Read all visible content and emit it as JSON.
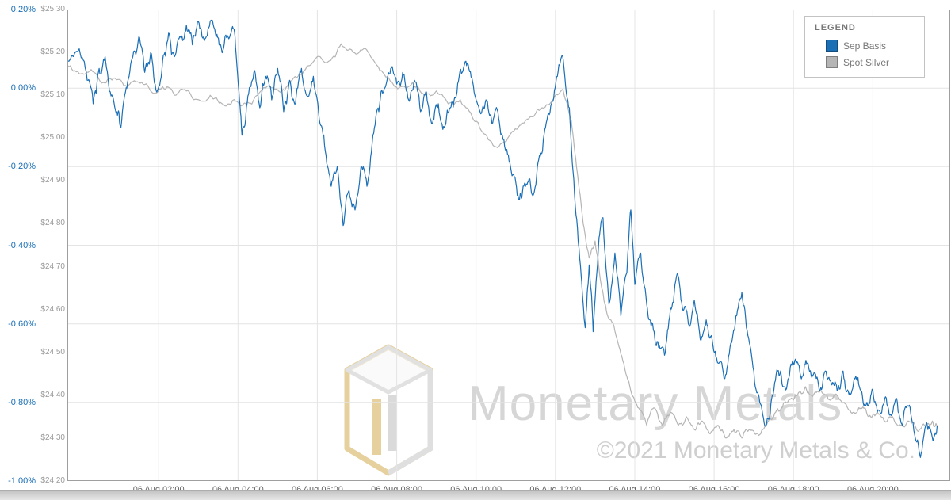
{
  "legend": {
    "title": "LEGEND"
  },
  "watermark": {
    "brand": "Monetary Metals",
    "copyright": "©2021 Monetary Metals & Co."
  },
  "chart_data": {
    "type": "line",
    "title": "",
    "grid": true,
    "legend_position": "top-right",
    "x_axis": {
      "range_hours": [
        -0.3,
        21.95
      ],
      "tick_hours": [
        2,
        4,
        6,
        8,
        10,
        12,
        14,
        16,
        18,
        20
      ],
      "tick_labels": [
        "06 Aug 02:00",
        "06 Aug 04:00",
        "06 Aug 06:00",
        "06 Aug 08:00",
        "06 Aug 10:00",
        "06 Aug 12:00",
        "06 Aug 14:00",
        "06 Aug 16:00",
        "06 Aug 18:00",
        "06 Aug 20:00"
      ]
    },
    "percent_axis": {
      "color": "#1a6fb5",
      "range": [
        -1.0,
        0.2
      ],
      "values": [
        0.2,
        0.0,
        -0.2,
        -0.4,
        -0.6,
        -0.8,
        -1.0
      ],
      "ticks": [
        "0.20%",
        "0.00%",
        "-0.20%",
        "-0.40%",
        "-0.60%",
        "-0.80%",
        "-1.00%"
      ]
    },
    "price_axis": {
      "color": "#9a9a9a",
      "range": [
        24.2,
        25.3
      ],
      "values": [
        25.3,
        25.2,
        25.1,
        25.0,
        24.9,
        24.8,
        24.7,
        24.6,
        24.5,
        24.4,
        24.3,
        24.2
      ],
      "ticks": [
        "$25.30",
        "$25.20",
        "$25.10",
        "$25.00",
        "$24.90",
        "$24.80",
        "$24.70",
        "$24.60",
        "$24.50",
        "$24.40",
        "$24.30",
        "$24.20"
      ]
    },
    "series": [
      {
        "name": "Sep Basis",
        "axis": "percent",
        "color": "#1b6fb5",
        "noise_amplitude": 0.025,
        "seed": 7,
        "points": [
          [
            -0.3,
            0.07
          ],
          [
            0.0,
            0.1
          ],
          [
            0.2,
            0.02
          ],
          [
            0.35,
            -0.04
          ],
          [
            0.5,
            0.05
          ],
          [
            0.65,
            0.08
          ],
          [
            0.8,
            -0.02
          ],
          [
            0.95,
            -0.06
          ],
          [
            1.05,
            -0.1
          ],
          [
            1.2,
            0.0
          ],
          [
            1.35,
            0.08
          ],
          [
            1.5,
            0.13
          ],
          [
            1.65,
            0.04
          ],
          [
            1.8,
            0.09
          ],
          [
            1.95,
            -0.01
          ],
          [
            2.1,
            0.07
          ],
          [
            2.25,
            0.14
          ],
          [
            2.4,
            0.08
          ],
          [
            2.55,
            0.13
          ],
          [
            2.7,
            0.16
          ],
          [
            2.85,
            0.11
          ],
          [
            3.0,
            0.17
          ],
          [
            3.15,
            0.12
          ],
          [
            3.3,
            0.17
          ],
          [
            3.45,
            0.13
          ],
          [
            3.6,
            0.09
          ],
          [
            3.75,
            0.13
          ],
          [
            3.9,
            0.15
          ],
          [
            4.0,
            0.02
          ],
          [
            4.1,
            -0.12
          ],
          [
            4.25,
            -0.02
          ],
          [
            4.4,
            0.04
          ],
          [
            4.55,
            -0.05
          ],
          [
            4.7,
            0.03
          ],
          [
            4.85,
            -0.03
          ],
          [
            5.0,
            0.05
          ],
          [
            5.15,
            -0.06
          ],
          [
            5.3,
            0.02
          ],
          [
            5.45,
            -0.04
          ],
          [
            5.6,
            0.05
          ],
          [
            5.75,
            -0.02
          ],
          [
            5.9,
            0.03
          ],
          [
            6.05,
            -0.08
          ],
          [
            6.2,
            -0.16
          ],
          [
            6.35,
            -0.25
          ],
          [
            6.5,
            -0.2
          ],
          [
            6.65,
            -0.35
          ],
          [
            6.8,
            -0.26
          ],
          [
            6.95,
            -0.31
          ],
          [
            7.1,
            -0.2
          ],
          [
            7.25,
            -0.25
          ],
          [
            7.4,
            -0.12
          ],
          [
            7.55,
            -0.06
          ],
          [
            7.7,
            0.0
          ],
          [
            7.85,
            0.05
          ],
          [
            8.0,
            0.01
          ],
          [
            8.15,
            0.04
          ],
          [
            8.3,
            -0.03
          ],
          [
            8.45,
            0.02
          ],
          [
            8.6,
            -0.06
          ],
          [
            8.75,
            -0.01
          ],
          [
            8.9,
            -0.09
          ],
          [
            9.05,
            -0.04
          ],
          [
            9.2,
            -0.1
          ],
          [
            9.35,
            -0.05
          ],
          [
            9.5,
            -0.02
          ],
          [
            9.65,
            0.04
          ],
          [
            9.8,
            0.06
          ],
          [
            9.95,
            -0.01
          ],
          [
            10.1,
            -0.06
          ],
          [
            10.25,
            -0.03
          ],
          [
            10.4,
            -0.09
          ],
          [
            10.55,
            -0.06
          ],
          [
            10.7,
            -0.13
          ],
          [
            10.85,
            -0.19
          ],
          [
            11.0,
            -0.24
          ],
          [
            11.15,
            -0.28
          ],
          [
            11.3,
            -0.24
          ],
          [
            11.45,
            -0.27
          ],
          [
            11.6,
            -0.17
          ],
          [
            11.75,
            -0.1
          ],
          [
            11.9,
            -0.04
          ],
          [
            12.05,
            0.03
          ],
          [
            12.2,
            0.07
          ],
          [
            12.35,
            -0.05
          ],
          [
            12.5,
            -0.3
          ],
          [
            12.65,
            -0.48
          ],
          [
            12.75,
            -0.61
          ],
          [
            12.85,
            -0.45
          ],
          [
            12.95,
            -0.62
          ],
          [
            13.1,
            -0.38
          ],
          [
            13.2,
            -0.33
          ],
          [
            13.35,
            -0.55
          ],
          [
            13.5,
            -0.42
          ],
          [
            13.65,
            -0.58
          ],
          [
            13.8,
            -0.47
          ],
          [
            13.9,
            -0.31
          ],
          [
            14.0,
            -0.5
          ],
          [
            14.15,
            -0.42
          ],
          [
            14.3,
            -0.55
          ],
          [
            14.45,
            -0.6
          ],
          [
            14.6,
            -0.66
          ],
          [
            14.75,
            -0.68
          ],
          [
            14.9,
            -0.56
          ],
          [
            15.05,
            -0.48
          ],
          [
            15.2,
            -0.56
          ],
          [
            15.35,
            -0.6
          ],
          [
            15.5,
            -0.54
          ],
          [
            15.65,
            -0.64
          ],
          [
            15.8,
            -0.59
          ],
          [
            15.95,
            -0.64
          ],
          [
            16.1,
            -0.7
          ],
          [
            16.25,
            -0.74
          ],
          [
            16.4,
            -0.66
          ],
          [
            16.55,
            -0.58
          ],
          [
            16.7,
            -0.52
          ],
          [
            16.85,
            -0.63
          ],
          [
            17.0,
            -0.72
          ],
          [
            17.15,
            -0.8
          ],
          [
            17.3,
            -0.86
          ],
          [
            17.45,
            -0.79
          ],
          [
            17.6,
            -0.72
          ],
          [
            17.75,
            -0.76
          ],
          [
            17.9,
            -0.73
          ],
          [
            18.05,
            -0.69
          ],
          [
            18.2,
            -0.74
          ],
          [
            18.35,
            -0.7
          ],
          [
            18.5,
            -0.73
          ],
          [
            18.65,
            -0.77
          ],
          [
            18.8,
            -0.72
          ],
          [
            18.95,
            -0.75
          ],
          [
            19.1,
            -0.77
          ],
          [
            19.25,
            -0.72
          ],
          [
            19.4,
            -0.78
          ],
          [
            19.55,
            -0.74
          ],
          [
            19.7,
            -0.77
          ],
          [
            19.85,
            -0.8
          ],
          [
            20.0,
            -0.77
          ],
          [
            20.15,
            -0.82
          ],
          [
            20.3,
            -0.79
          ],
          [
            20.45,
            -0.83
          ],
          [
            20.6,
            -0.79
          ],
          [
            20.75,
            -0.86
          ],
          [
            20.9,
            -0.81
          ],
          [
            21.05,
            -0.88
          ],
          [
            21.2,
            -0.94
          ],
          [
            21.35,
            -0.85
          ],
          [
            21.5,
            -0.89
          ],
          [
            21.62,
            -0.86
          ]
        ]
      },
      {
        "name": "Spot Silver",
        "axis": "price",
        "color": "#b5b5b5",
        "noise_amplitude": 0.011,
        "seed": 13,
        "points": [
          [
            -0.3,
            25.17
          ],
          [
            0.0,
            25.15
          ],
          [
            0.3,
            25.16
          ],
          [
            0.6,
            25.13
          ],
          [
            0.9,
            25.14
          ],
          [
            1.2,
            25.12
          ],
          [
            1.5,
            25.13
          ],
          [
            1.8,
            25.11
          ],
          [
            2.1,
            25.12
          ],
          [
            2.4,
            25.1
          ],
          [
            2.7,
            25.11
          ],
          [
            3.0,
            25.09
          ],
          [
            3.3,
            25.1
          ],
          [
            3.6,
            25.08
          ],
          [
            3.9,
            25.09
          ],
          [
            4.2,
            25.08
          ],
          [
            4.5,
            25.1
          ],
          [
            4.8,
            25.12
          ],
          [
            5.1,
            25.11
          ],
          [
            5.4,
            25.14
          ],
          [
            5.7,
            25.16
          ],
          [
            6.0,
            25.19
          ],
          [
            6.3,
            25.18
          ],
          [
            6.6,
            25.22
          ],
          [
            6.9,
            25.2
          ],
          [
            7.2,
            25.21
          ],
          [
            7.5,
            25.17
          ],
          [
            7.8,
            25.14
          ],
          [
            8.1,
            25.12
          ],
          [
            8.4,
            25.13
          ],
          [
            8.7,
            25.1
          ],
          [
            9.0,
            25.11
          ],
          [
            9.3,
            25.08
          ],
          [
            9.6,
            25.09
          ],
          [
            9.9,
            25.05
          ],
          [
            10.2,
            25.01
          ],
          [
            10.5,
            24.98
          ],
          [
            10.8,
            25.0
          ],
          [
            11.1,
            25.03
          ],
          [
            11.4,
            25.05
          ],
          [
            11.7,
            25.07
          ],
          [
            12.0,
            25.1
          ],
          [
            12.2,
            25.11
          ],
          [
            12.4,
            25.04
          ],
          [
            12.55,
            24.92
          ],
          [
            12.7,
            24.8
          ],
          [
            12.85,
            24.72
          ],
          [
            13.0,
            24.76
          ],
          [
            13.15,
            24.66
          ],
          [
            13.3,
            24.59
          ],
          [
            13.5,
            24.55
          ],
          [
            13.7,
            24.48
          ],
          [
            13.9,
            24.41
          ],
          [
            14.1,
            24.37
          ],
          [
            14.3,
            24.33
          ],
          [
            14.5,
            24.37
          ],
          [
            14.7,
            24.33
          ],
          [
            14.9,
            24.36
          ],
          [
            15.1,
            24.33
          ],
          [
            15.3,
            24.35
          ],
          [
            15.5,
            24.32
          ],
          [
            15.7,
            24.34
          ],
          [
            15.9,
            24.31
          ],
          [
            16.1,
            24.33
          ],
          [
            16.3,
            24.3
          ],
          [
            16.5,
            24.32
          ],
          [
            16.7,
            24.3
          ],
          [
            16.9,
            24.32
          ],
          [
            17.1,
            24.31
          ],
          [
            17.3,
            24.33
          ],
          [
            17.5,
            24.35
          ],
          [
            17.7,
            24.37
          ],
          [
            17.9,
            24.39
          ],
          [
            18.1,
            24.4
          ],
          [
            18.3,
            24.42
          ],
          [
            18.5,
            24.4
          ],
          [
            18.7,
            24.41
          ],
          [
            18.9,
            24.39
          ],
          [
            19.1,
            24.4
          ],
          [
            19.3,
            24.38
          ],
          [
            19.5,
            24.36
          ],
          [
            19.7,
            24.37
          ],
          [
            19.9,
            24.35
          ],
          [
            20.1,
            24.36
          ],
          [
            20.3,
            24.34
          ],
          [
            20.5,
            24.35
          ],
          [
            20.7,
            24.33
          ],
          [
            20.9,
            24.34
          ],
          [
            21.1,
            24.32
          ],
          [
            21.3,
            24.33
          ],
          [
            21.5,
            24.34
          ],
          [
            21.62,
            24.33
          ]
        ]
      }
    ]
  }
}
